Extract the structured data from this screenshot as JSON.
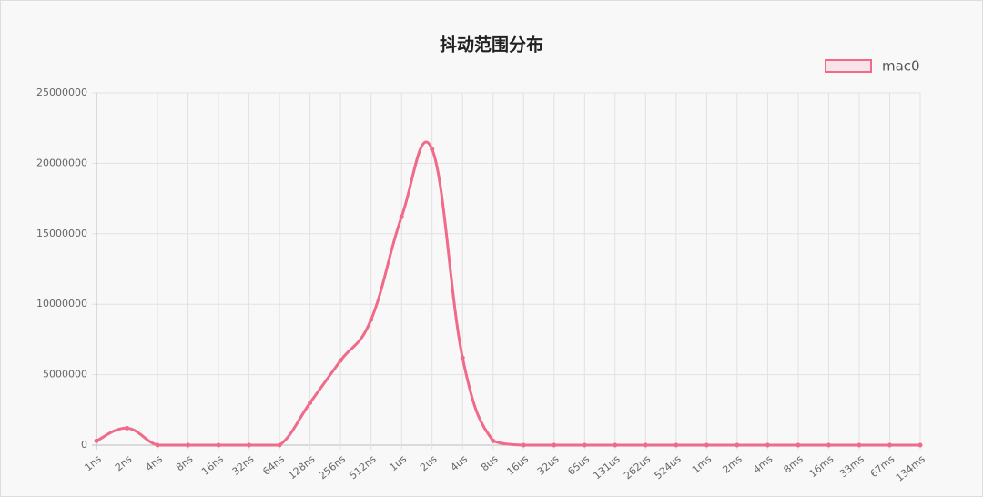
{
  "chart_data": {
    "type": "line",
    "title": "抖动范围分布",
    "categories": [
      "1ns",
      "2ns",
      "4ns",
      "8ns",
      "16ns",
      "32ns",
      "64ns",
      "128ns",
      "256ns",
      "512ns",
      "1us",
      "2us",
      "4us",
      "8us",
      "16us",
      "32us",
      "65us",
      "131us",
      "262us",
      "524us",
      "1ms",
      "2ms",
      "4ms",
      "8ms",
      "16ms",
      "33ms",
      "67ms",
      "134ms"
    ],
    "series": [
      {
        "name": "mac0",
        "color": "#f06a8a",
        "values": [
          300000,
          1200000,
          0,
          0,
          0,
          0,
          0,
          3000000,
          6000000,
          8900000,
          16200000,
          21000000,
          6200000,
          300000,
          0,
          0,
          0,
          0,
          0,
          0,
          0,
          0,
          0,
          0,
          0,
          0,
          0,
          0
        ]
      }
    ],
    "ylim": [
      0,
      25000000
    ],
    "yticks": [
      0,
      5000000,
      10000000,
      15000000,
      20000000,
      25000000
    ],
    "grid": true,
    "legend": "top-right"
  }
}
